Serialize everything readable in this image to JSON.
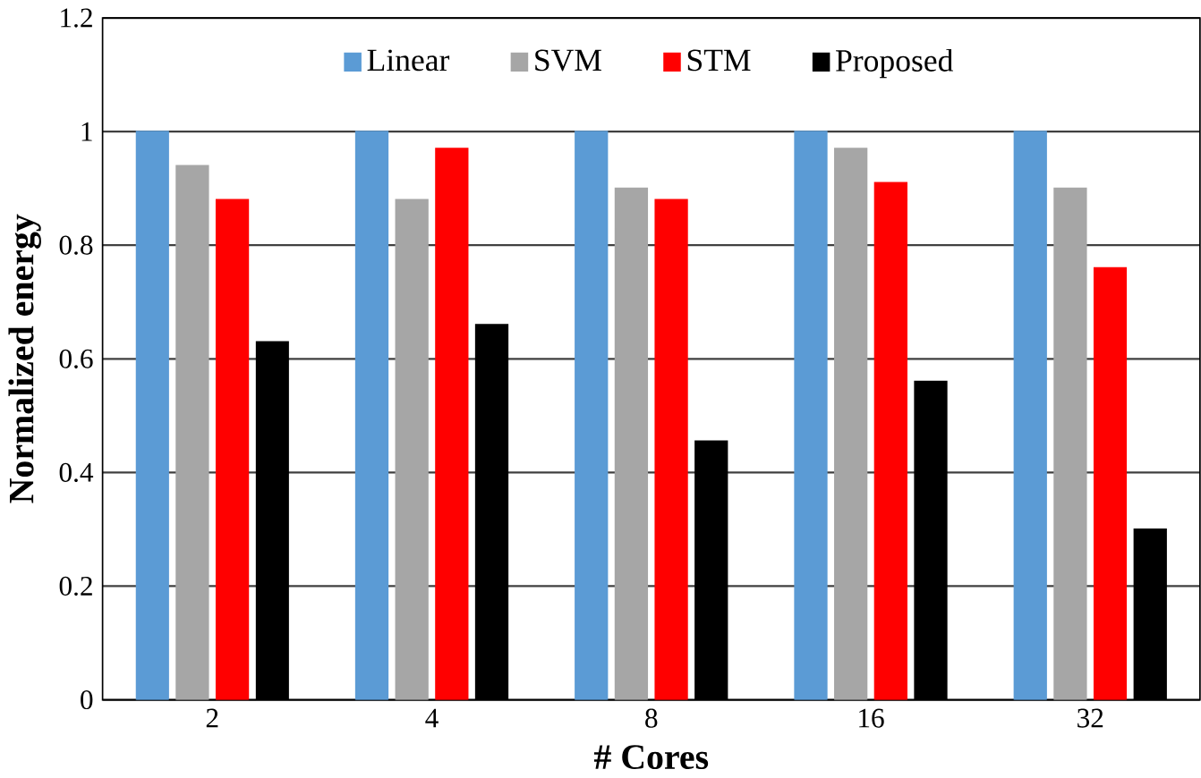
{
  "chart_data": {
    "type": "bar",
    "xlabel": "# Cores",
    "ylabel": "Normalized energy",
    "categories": [
      "2",
      "4",
      "8",
      "16",
      "32"
    ],
    "series": [
      {
        "name": "Linear",
        "color": "#5b9bd5",
        "values": [
          1,
          1,
          1,
          1,
          1
        ]
      },
      {
        "name": "SVM",
        "color": "#a6a6a6",
        "values": [
          0.94,
          0.88,
          0.9,
          0.97,
          0.9
        ]
      },
      {
        "name": "STM",
        "color": "#ff0000",
        "values": [
          0.88,
          0.97,
          0.88,
          0.91,
          0.76
        ]
      },
      {
        "name": "Proposed",
        "color": "#000000",
        "values": [
          0.63,
          0.66,
          0.455,
          0.56,
          0.3
        ]
      }
    ],
    "ylim": [
      0,
      1.2
    ],
    "yticks": [
      0,
      0.2,
      0.4,
      0.6,
      0.8,
      1,
      1.2
    ],
    "grid": "y",
    "legend": "top"
  }
}
